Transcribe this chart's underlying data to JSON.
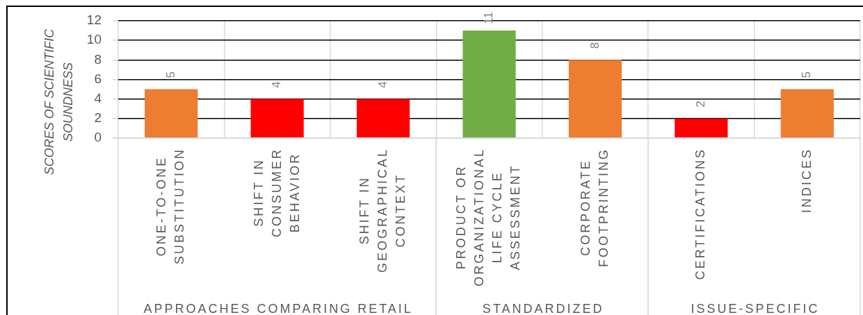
{
  "chart_data": {
    "type": "bar",
    "ylabel": "SCORES OF SCIENTIFIC SOUNDNESS",
    "categories": [
      "ONE-TO-ONE SUBSTITUTION",
      "SHIFT IN CONSUMER BEHAVIOR",
      "SHIFT IN GEOGRAPHICAL CONTEXT",
      "PRODUCT OR ORGANIZATIONAL LIFE CYCLE ASSESSMENT",
      "CORPORATE FOOTPRINTING",
      "CERTIFICATIONS",
      "INDICES"
    ],
    "values": [
      5,
      4,
      4,
      11,
      8,
      2,
      5
    ],
    "colors": [
      "#ed7d31",
      "#ff0000",
      "#ff0000",
      "#70ad47",
      "#ed7d31",
      "#ff0000",
      "#ed7d31"
    ],
    "ylim": [
      0,
      12
    ],
    "yticks": [
      0,
      2,
      4,
      6,
      8,
      10,
      12
    ],
    "grid": true,
    "data_labels": true,
    "annotations": [
      "APPROACHES COMPARING RETAIL",
      "STANDARDIZED",
      "ISSUE-SPECIFIC"
    ]
  }
}
